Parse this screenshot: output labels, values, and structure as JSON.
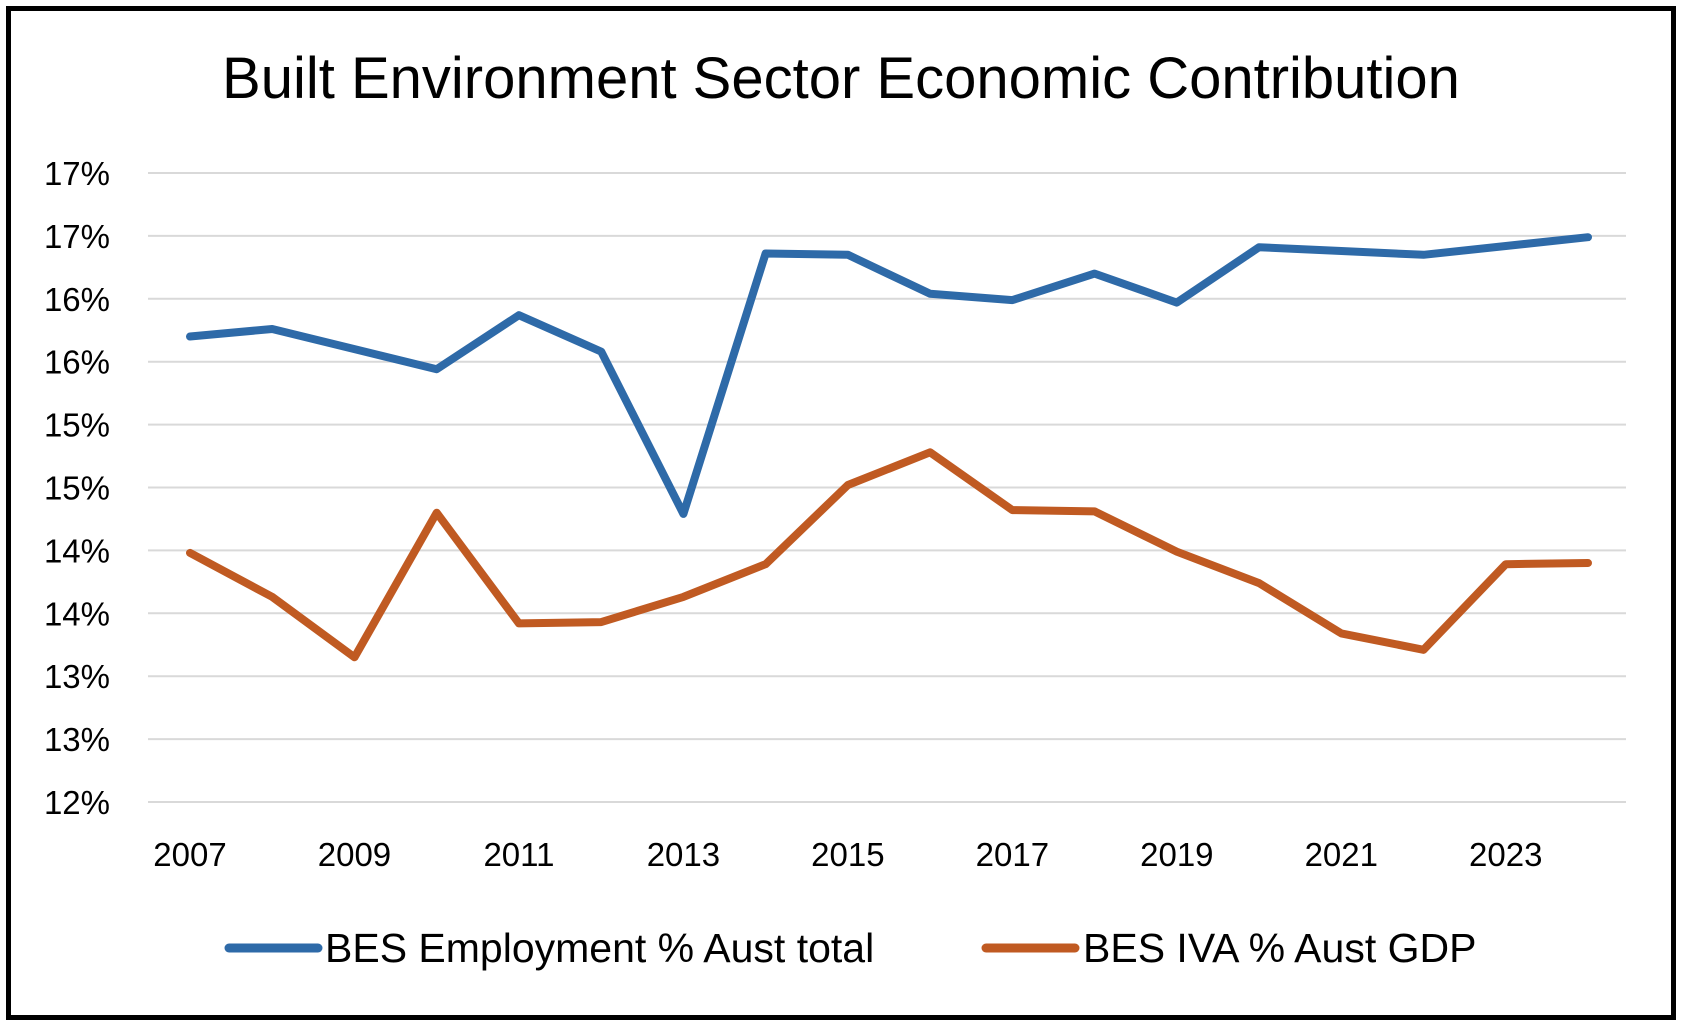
{
  "chart_data": {
    "type": "line",
    "title": "Built Environment Sector Economic Contribution",
    "xlabel": "",
    "ylabel": "",
    "x": [
      2007,
      2008,
      2009,
      2010,
      2011,
      2012,
      2013,
      2014,
      2015,
      2016,
      2017,
      2018,
      2019,
      2020,
      2021,
      2022,
      2023,
      2024
    ],
    "x_tick_labels": [
      "2007",
      "2009",
      "2011",
      "2013",
      "2015",
      "2017",
      "2019",
      "2021",
      "2023"
    ],
    "y_tick_labels": [
      "17%",
      "17%",
      "16%",
      "16%",
      "15%",
      "15%",
      "14%",
      "14%",
      "13%",
      "13%",
      "12%"
    ],
    "ylim": [
      12,
      17
    ],
    "grid": true,
    "legend_position": "bottom",
    "series": [
      {
        "name": "BES Employment % Aust total",
        "color": "#2E6AA8",
        "values": [
          15.7,
          15.76,
          15.6,
          15.44,
          15.87,
          15.58,
          14.29,
          16.36,
          16.35,
          16.04,
          15.99,
          16.2,
          15.97,
          16.41,
          16.38,
          16.35,
          16.42,
          16.49
        ]
      },
      {
        "name": "BES IVA % Aust GDP",
        "color": "#C05A22",
        "values": [
          13.98,
          13.63,
          13.15,
          14.3,
          13.42,
          13.43,
          13.63,
          13.89,
          14.52,
          14.78,
          14.32,
          14.31,
          13.99,
          13.74,
          13.34,
          13.21,
          13.89,
          13.9
        ]
      }
    ]
  }
}
